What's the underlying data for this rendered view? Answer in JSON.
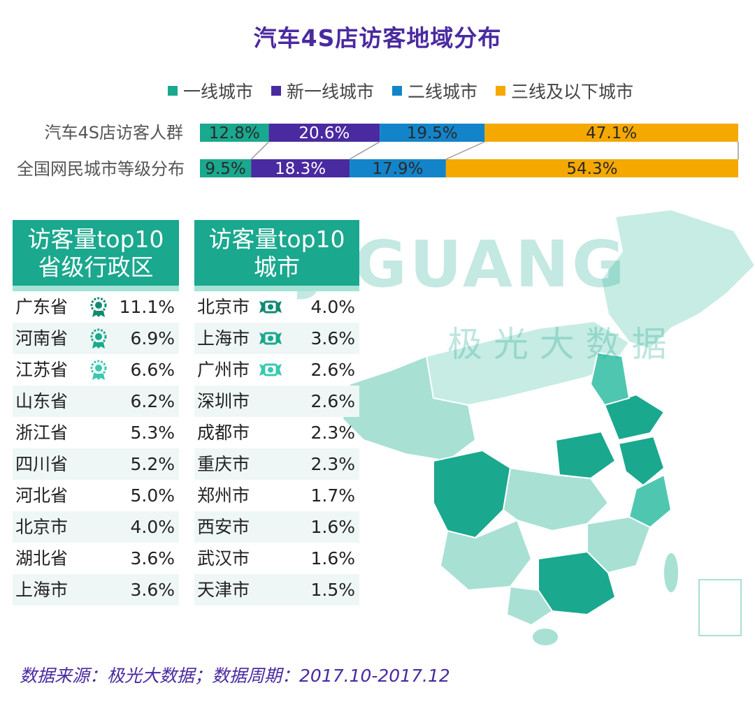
{
  "title": "汽车4S店访客地域分布",
  "colors": {
    "tier1": "#1aa88e",
    "new_tier1": "#4a2aa0",
    "tier2": "#1384c9",
    "tier3_below": "#f5a800",
    "map_dark": "#1aa88e",
    "map_medium": "#4fc7b0",
    "map_light": "#a8e0d4",
    "map_lighter": "#c7ece4",
    "header_green": "#1aa88e"
  },
  "chart_data": {
    "type": "bar",
    "stacked": true,
    "orientation": "horizontal",
    "title": "汽车4S店访客地域分布",
    "categories": [
      "汽车4S店访客人群",
      "全国网民城市等级分布"
    ],
    "series": [
      {
        "name": "一线城市",
        "values": [
          12.8,
          9.5
        ],
        "labels": [
          "12.8%",
          "9.5%"
        ]
      },
      {
        "name": "新一线城市",
        "values": [
          20.6,
          18.3
        ],
        "labels": [
          "20.6%",
          "18.3%"
        ]
      },
      {
        "name": "二线城市",
        "values": [
          19.5,
          17.9
        ],
        "labels": [
          "19.5%",
          "17.9%"
        ]
      },
      {
        "name": "三线及以下城市",
        "values": [
          47.1,
          54.3
        ],
        "labels": [
          "47.1%",
          "54.3%"
        ]
      }
    ],
    "xlim": [
      0,
      100
    ],
    "legend": "top",
    "grid": false
  },
  "province_panel": {
    "header": [
      "访客量top10",
      "省级行政区"
    ],
    "rows": [
      {
        "name": "广东省",
        "value": "11.1%",
        "medal": "gold-medal-icon"
      },
      {
        "name": "河南省",
        "value": "6.9%",
        "medal": "silver-medal-icon"
      },
      {
        "name": "江苏省",
        "value": "6.6%",
        "medal": "bronze-medal-icon"
      },
      {
        "name": "山东省",
        "value": "6.2%"
      },
      {
        "name": "浙江省",
        "value": "5.3%"
      },
      {
        "name": "四川省",
        "value": "5.2%"
      },
      {
        "name": "河北省",
        "value": "5.0%"
      },
      {
        "name": "北京市",
        "value": "4.0%"
      },
      {
        "name": "湖北省",
        "value": "3.6%"
      },
      {
        "name": "上海市",
        "value": "3.6%"
      }
    ]
  },
  "city_panel": {
    "header": [
      "访客量top10",
      "城市"
    ],
    "rows": [
      {
        "name": "北京市",
        "value": "4.0%",
        "medal": "first-ribbon-icon"
      },
      {
        "name": "上海市",
        "value": "3.6%",
        "medal": "second-ribbon-icon"
      },
      {
        "name": "广州市",
        "value": "2.6%",
        "medal": "third-ribbon-icon"
      },
      {
        "name": "深圳市",
        "value": "2.6%"
      },
      {
        "name": "成都市",
        "value": "2.3%"
      },
      {
        "name": "重庆市",
        "value": "2.3%"
      },
      {
        "name": "郑州市",
        "value": "1.7%"
      },
      {
        "name": "西安市",
        "value": "1.6%"
      },
      {
        "name": "武汉市",
        "value": "1.6%"
      },
      {
        "name": "天津市",
        "value": "1.5%"
      }
    ]
  },
  "watermark": {
    "brand": "JIGUANG",
    "cn": "极 光 大 数 据"
  },
  "source": "数据来源：极光大数据；数据周期：2017.10-2017.12"
}
